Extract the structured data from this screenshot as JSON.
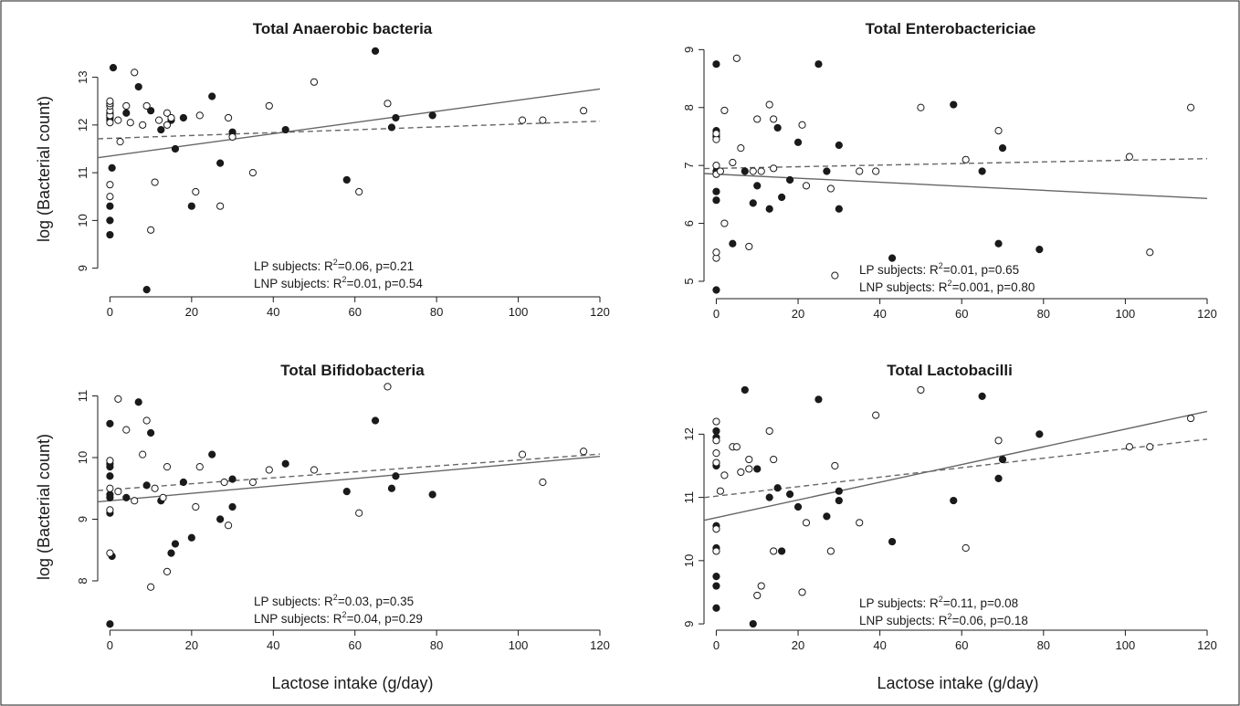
{
  "figure": {
    "ylabel": "log (Bacterial count)",
    "xlabel": "Lactose intake (g/day)"
  },
  "legend": {
    "lp": "LP subjects: R",
    "lnp": "LNP subjects: R",
    "sup": "2"
  },
  "colors": {
    "lp_points": "#1a1a1a",
    "lnp_points": "#ffffff",
    "lp_line": "#666666",
    "lnp_line": "#666666",
    "axis": "#1a1a1a",
    "frame": "#1a1a1a"
  },
  "chart_data": [
    {
      "type": "scatter",
      "title": "Total Anaerobic bacteria",
      "xlabel": "Lactose intake (g/day)",
      "ylabel": "log (Bacterial count)",
      "xlim": [
        -3,
        120
      ],
      "ylim": [
        8.4,
        13.7
      ],
      "xticks": [
        0,
        20,
        40,
        60,
        80,
        100,
        120
      ],
      "yticks": [
        9,
        10,
        11,
        12,
        13
      ],
      "stats": {
        "lp": "=0.06, p=0.21",
        "lnp": "=0.01, p=0.54"
      },
      "series": [
        {
          "name": "LP subjects",
          "fit": [
            11.35,
            0.0117
          ],
          "points": [
            [
              0,
              9.7
            ],
            [
              0,
              10.0
            ],
            [
              0,
              10.3
            ],
            [
              0,
              12.1
            ],
            [
              0,
              12.15
            ],
            [
              0,
              12.2
            ],
            [
              0,
              12.25
            ],
            [
              0.5,
              11.1
            ],
            [
              0.8,
              13.2
            ],
            [
              4,
              12.25
            ],
            [
              7,
              12.8
            ],
            [
              9,
              8.55
            ],
            [
              10,
              12.3
            ],
            [
              12.5,
              11.9
            ],
            [
              15,
              12.1
            ],
            [
              16,
              11.5
            ],
            [
              18,
              12.15
            ],
            [
              20,
              10.3
            ],
            [
              25,
              12.6
            ],
            [
              27,
              11.2
            ],
            [
              30,
              11.85
            ],
            [
              43,
              11.9
            ],
            [
              58,
              10.85
            ],
            [
              65,
              13.55
            ],
            [
              69,
              11.95
            ],
            [
              70,
              12.15
            ],
            [
              79,
              12.2
            ]
          ]
        },
        {
          "name": "LNP subjects",
          "fit": [
            11.72,
            0.003
          ],
          "points": [
            [
              0,
              10.5
            ],
            [
              0,
              10.75
            ],
            [
              0,
              12.05
            ],
            [
              0,
              12.2
            ],
            [
              0,
              12.3
            ],
            [
              0,
              12.4
            ],
            [
              0,
              12.45
            ],
            [
              0,
              12.5
            ],
            [
              2,
              12.1
            ],
            [
              2.5,
              11.65
            ],
            [
              4,
              12.4
            ],
            [
              5,
              12.05
            ],
            [
              6,
              13.1
            ],
            [
              8,
              12.0
            ],
            [
              9,
              12.4
            ],
            [
              10,
              9.8
            ],
            [
              11,
              10.8
            ],
            [
              12,
              12.1
            ],
            [
              14,
              12.25
            ],
            [
              14,
              12.0
            ],
            [
              15,
              12.15
            ],
            [
              21,
              10.6
            ],
            [
              22,
              12.2
            ],
            [
              27,
              10.3
            ],
            [
              29,
              12.15
            ],
            [
              30,
              11.75
            ],
            [
              35,
              11.0
            ],
            [
              39,
              12.4
            ],
            [
              50,
              12.9
            ],
            [
              61,
              10.6
            ],
            [
              68,
              12.45
            ],
            [
              101,
              12.1
            ],
            [
              106,
              12.1
            ],
            [
              116,
              12.3
            ]
          ]
        }
      ]
    },
    {
      "type": "scatter",
      "title": "Total Enterobactericiae",
      "xlabel": "",
      "ylabel": "",
      "xlim": [
        -3,
        120
      ],
      "ylim": [
        4.7,
        9.1
      ],
      "xticks": [
        0,
        20,
        40,
        60,
        80,
        100,
        120
      ],
      "yticks": [
        5,
        6,
        7,
        8,
        9
      ],
      "stats": {
        "lp": "=0.01, p=0.65",
        "lnp": "=0.001, p=0.80"
      },
      "series": [
        {
          "name": "LP subjects",
          "fit": [
            6.85,
            -0.0035
          ],
          "points": [
            [
              0,
              4.85
            ],
            [
              0,
              6.4
            ],
            [
              0,
              6.55
            ],
            [
              0,
              6.85
            ],
            [
              0,
              6.9
            ],
            [
              0,
              7.5
            ],
            [
              0,
              7.6
            ],
            [
              0,
              8.75
            ],
            [
              4,
              5.65
            ],
            [
              7,
              6.9
            ],
            [
              9,
              6.35
            ],
            [
              10,
              6.65
            ],
            [
              13,
              6.25
            ],
            [
              15,
              7.65
            ],
            [
              16,
              6.45
            ],
            [
              18,
              6.75
            ],
            [
              20,
              7.4
            ],
            [
              25,
              8.75
            ],
            [
              27,
              6.9
            ],
            [
              30,
              6.25
            ],
            [
              30,
              7.35
            ],
            [
              43,
              5.4
            ],
            [
              58,
              8.05
            ],
            [
              65,
              6.9
            ],
            [
              69,
              5.65
            ],
            [
              70,
              7.3
            ],
            [
              79,
              5.55
            ]
          ]
        },
        {
          "name": "LNP subjects",
          "fit": [
            6.95,
            0.0014
          ],
          "points": [
            [
              0,
              5.4
            ],
            [
              0,
              5.5
            ],
            [
              0,
              6.85
            ],
            [
              0,
              7.0
            ],
            [
              0,
              7.45
            ],
            [
              0,
              7.55
            ],
            [
              1,
              6.9
            ],
            [
              2,
              6.0
            ],
            [
              2,
              7.95
            ],
            [
              4,
              7.05
            ],
            [
              5,
              8.85
            ],
            [
              6,
              7.3
            ],
            [
              8,
              5.6
            ],
            [
              9,
              6.9
            ],
            [
              10,
              7.8
            ],
            [
              11,
              6.9
            ],
            [
              13,
              8.05
            ],
            [
              14,
              7.8
            ],
            [
              14,
              6.95
            ],
            [
              21,
              7.7
            ],
            [
              22,
              6.65
            ],
            [
              28,
              6.6
            ],
            [
              29,
              5.1
            ],
            [
              35,
              6.9
            ],
            [
              39,
              6.9
            ],
            [
              50,
              8.0
            ],
            [
              61,
              7.1
            ],
            [
              69,
              7.6
            ],
            [
              101,
              7.15
            ],
            [
              106,
              5.5
            ],
            [
              116,
              8.0
            ]
          ]
        }
      ]
    },
    {
      "type": "scatter",
      "title": "Total Bifidobacteria",
      "xlabel": "Lactose intake (g/day)",
      "ylabel": "log (Bacterial count)",
      "xlim": [
        -3,
        120
      ],
      "ylim": [
        7.2,
        11.2
      ],
      "xticks": [
        0,
        20,
        40,
        60,
        80,
        100,
        120
      ],
      "yticks": [
        8,
        9,
        10,
        11
      ],
      "stats": {
        "lp": "=0.03, p=0.35",
        "lnp": "=0.04, p=0.29"
      },
      "series": [
        {
          "name": "LP subjects",
          "fit": [
            9.3,
            0.006
          ],
          "points": [
            [
              0,
              7.3
            ],
            [
              0,
              9.1
            ],
            [
              0,
              9.35
            ],
            [
              0,
              9.4
            ],
            [
              0,
              9.7
            ],
            [
              0,
              9.85
            ],
            [
              0,
              9.9
            ],
            [
              0,
              10.55
            ],
            [
              0.5,
              8.4
            ],
            [
              4,
              9.35
            ],
            [
              7,
              10.9
            ],
            [
              9,
              9.55
            ],
            [
              10,
              10.4
            ],
            [
              12.5,
              9.3
            ],
            [
              15,
              8.45
            ],
            [
              16,
              8.6
            ],
            [
              18,
              9.6
            ],
            [
              20,
              8.7
            ],
            [
              25,
              10.05
            ],
            [
              27,
              9.0
            ],
            [
              30,
              9.2
            ],
            [
              30,
              9.65
            ],
            [
              43,
              9.9
            ],
            [
              58,
              9.45
            ],
            [
              65,
              10.6
            ],
            [
              69,
              9.5
            ],
            [
              70,
              9.7
            ],
            [
              79,
              9.4
            ]
          ]
        },
        {
          "name": "LNP subjects",
          "fit": [
            9.48,
            0.0048
          ],
          "points": [
            [
              0,
              8.45
            ],
            [
              0,
              9.15
            ],
            [
              0,
              9.5
            ],
            [
              0,
              9.95
            ],
            [
              2,
              10.95
            ],
            [
              2,
              9.45
            ],
            [
              4,
              10.45
            ],
            [
              6,
              9.3
            ],
            [
              8,
              10.05
            ],
            [
              9,
              10.6
            ],
            [
              10,
              7.9
            ],
            [
              11,
              9.5
            ],
            [
              13,
              9.35
            ],
            [
              14,
              8.15
            ],
            [
              14,
              9.85
            ],
            [
              21,
              9.2
            ],
            [
              22,
              9.85
            ],
            [
              28,
              9.6
            ],
            [
              29,
              8.9
            ],
            [
              35,
              9.6
            ],
            [
              39,
              9.8
            ],
            [
              50,
              9.8
            ],
            [
              61,
              9.1
            ],
            [
              68,
              11.15
            ],
            [
              101,
              10.05
            ],
            [
              106,
              9.6
            ],
            [
              116,
              10.1
            ]
          ]
        }
      ]
    },
    {
      "type": "scatter",
      "title": "Total Lactobacilli",
      "xlabel": "Lactose intake (g/day)",
      "ylabel": "",
      "xlim": [
        -3,
        120
      ],
      "ylim": [
        8.9,
        12.8
      ],
      "xticks": [
        0,
        20,
        40,
        60,
        80,
        100,
        120
      ],
      "yticks": [
        9,
        10,
        11,
        12
      ],
      "stats": {
        "lp": "=0.11, p=0.08",
        "lnp": "=0.06, p=0.18"
      },
      "series": [
        {
          "name": "LP subjects",
          "fit": [
            10.68,
            0.014
          ],
          "points": [
            [
              0,
              9.25
            ],
            [
              0,
              9.6
            ],
            [
              0,
              9.75
            ],
            [
              0,
              10.2
            ],
            [
              0,
              10.55
            ],
            [
              0,
              11.5
            ],
            [
              0,
              11.95
            ],
            [
              0,
              12.05
            ],
            [
              7,
              12.7
            ],
            [
              9,
              9.0
            ],
            [
              10,
              11.45
            ],
            [
              13,
              11.0
            ],
            [
              15,
              11.15
            ],
            [
              16,
              10.15
            ],
            [
              18,
              11.05
            ],
            [
              20,
              10.85
            ],
            [
              25,
              12.55
            ],
            [
              27,
              10.7
            ],
            [
              30,
              10.95
            ],
            [
              30,
              11.1
            ],
            [
              43,
              10.3
            ],
            [
              58,
              10.95
            ],
            [
              65,
              12.6
            ],
            [
              69,
              11.3
            ],
            [
              70,
              11.6
            ],
            [
              79,
              12.0
            ]
          ]
        },
        {
          "name": "LNP subjects",
          "fit": [
            11.02,
            0.0075
          ],
          "points": [
            [
              0,
              10.15
            ],
            [
              0,
              10.5
            ],
            [
              0,
              11.55
            ],
            [
              0,
              11.7
            ],
            [
              0,
              11.9
            ],
            [
              0,
              12.2
            ],
            [
              1,
              11.1
            ],
            [
              2,
              11.35
            ],
            [
              4,
              11.8
            ],
            [
              5,
              11.8
            ],
            [
              6,
              11.4
            ],
            [
              8,
              11.6
            ],
            [
              8,
              11.45
            ],
            [
              10,
              9.45
            ],
            [
              11,
              9.6
            ],
            [
              13,
              12.05
            ],
            [
              14,
              10.15
            ],
            [
              14,
              11.6
            ],
            [
              21,
              9.5
            ],
            [
              22,
              10.6
            ],
            [
              28,
              10.15
            ],
            [
              29,
              11.5
            ],
            [
              35,
              10.6
            ],
            [
              39,
              12.3
            ],
            [
              50,
              12.7
            ],
            [
              61,
              10.2
            ],
            [
              69,
              11.9
            ],
            [
              101,
              11.8
            ],
            [
              106,
              11.8
            ],
            [
              116,
              12.25
            ]
          ]
        }
      ]
    }
  ]
}
